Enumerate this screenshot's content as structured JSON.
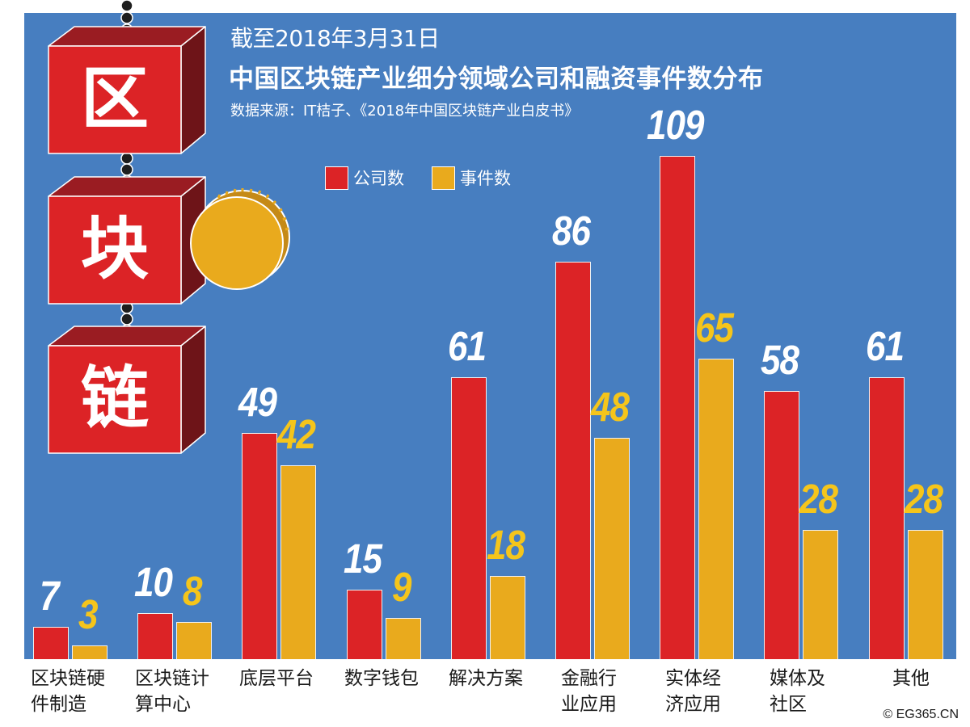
{
  "header": {
    "date_line": "截至2018年3月31日",
    "title": "中国区块链产业细分领域公司和融资事件数分布",
    "source": "数据来源：IT桔子、《2018年中国区块链产业白皮书》"
  },
  "decoration": {
    "cubes": [
      {
        "char": "区"
      },
      {
        "char": "块"
      },
      {
        "char": "链"
      }
    ],
    "coin_icon": "gold-coin"
  },
  "legend": [
    {
      "label": "公司数",
      "color": "#dc2326"
    },
    {
      "label": "事件数",
      "color": "#e9aa1d"
    }
  ],
  "colors": {
    "background_panel": "#477ec0",
    "company_bar": "#dc2326",
    "event_bar": "#e9aa1d",
    "company_label": "#ffffff",
    "event_label": "#f5c51b"
  },
  "copyright": "© EG365.CN",
  "chart_data": {
    "type": "bar",
    "title": "中国区块链产业细分领域公司和融资事件数分布",
    "subtitle": "截至2018年3月31日",
    "source": "数据来源：IT桔子、《2018年中国区块链产业白皮书》",
    "xlabel": "",
    "ylabel": "",
    "ylim": [
      0,
      110
    ],
    "grid": false,
    "legend_position": "top",
    "categories": [
      "区块链硬件制造",
      "区块链计算中心",
      "底层平台",
      "数字钱包",
      "解决方案",
      "金融行业应用",
      "实体经济应用",
      "媒体及社区",
      "其他"
    ],
    "category_lines": [
      [
        "区块链硬",
        "件制造"
      ],
      [
        "区块链计",
        "算中心"
      ],
      [
        "底层平台"
      ],
      [
        "数字钱包"
      ],
      [
        "解决方案"
      ],
      [
        "金融行",
        "业应用"
      ],
      [
        "实体经",
        "济应用"
      ],
      [
        "媒体及",
        "社区"
      ],
      [
        "其他"
      ]
    ],
    "series": [
      {
        "name": "公司数",
        "values": [
          7,
          10,
          49,
          15,
          61,
          86,
          109,
          58,
          61
        ]
      },
      {
        "name": "事件数",
        "values": [
          3,
          8,
          42,
          9,
          18,
          48,
          65,
          28,
          28
        ]
      }
    ]
  }
}
